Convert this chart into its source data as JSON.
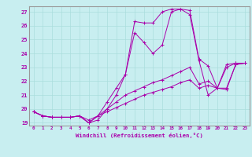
{
  "xlabel": "Windchill (Refroidissement éolien,°C)",
  "bg_color": "#c8eef0",
  "line_color": "#aa00aa",
  "grid_color": "#aadddd",
  "xmin": -0.5,
  "xmax": 23.5,
  "ymin": 18.8,
  "ymax": 27.4,
  "yticks": [
    19,
    20,
    21,
    22,
    23,
    24,
    25,
    26,
    27
  ],
  "xticks": [
    0,
    1,
    2,
    3,
    4,
    5,
    6,
    7,
    8,
    9,
    10,
    11,
    12,
    13,
    14,
    15,
    16,
    17,
    18,
    19,
    20,
    21,
    22,
    23
  ],
  "series": [
    [
      19.8,
      19.5,
      19.4,
      19.4,
      19.4,
      19.5,
      19.0,
      19.5,
      20.5,
      21.5,
      22.5,
      26.3,
      26.2,
      26.2,
      27.0,
      27.2,
      27.2,
      27.1,
      23.6,
      23.1,
      21.5,
      23.2,
      23.3,
      23.3
    ],
    [
      19.8,
      19.5,
      19.4,
      19.4,
      19.4,
      19.5,
      19.0,
      19.2,
      20.0,
      21.0,
      22.5,
      25.5,
      24.8,
      24.0,
      24.6,
      27.0,
      27.2,
      26.8,
      23.5,
      21.0,
      21.5,
      21.5,
      23.2,
      23.3
    ],
    [
      19.8,
      19.5,
      19.4,
      19.4,
      19.4,
      19.5,
      19.0,
      19.5,
      20.0,
      20.5,
      21.0,
      21.3,
      21.6,
      21.9,
      22.1,
      22.4,
      22.7,
      23.0,
      21.8,
      22.0,
      21.5,
      23.0,
      23.3,
      23.3
    ],
    [
      19.8,
      19.5,
      19.4,
      19.4,
      19.4,
      19.5,
      19.2,
      19.5,
      19.8,
      20.1,
      20.4,
      20.7,
      21.0,
      21.2,
      21.4,
      21.6,
      21.9,
      22.1,
      21.5,
      21.7,
      21.5,
      21.4,
      23.2,
      23.3
    ]
  ]
}
